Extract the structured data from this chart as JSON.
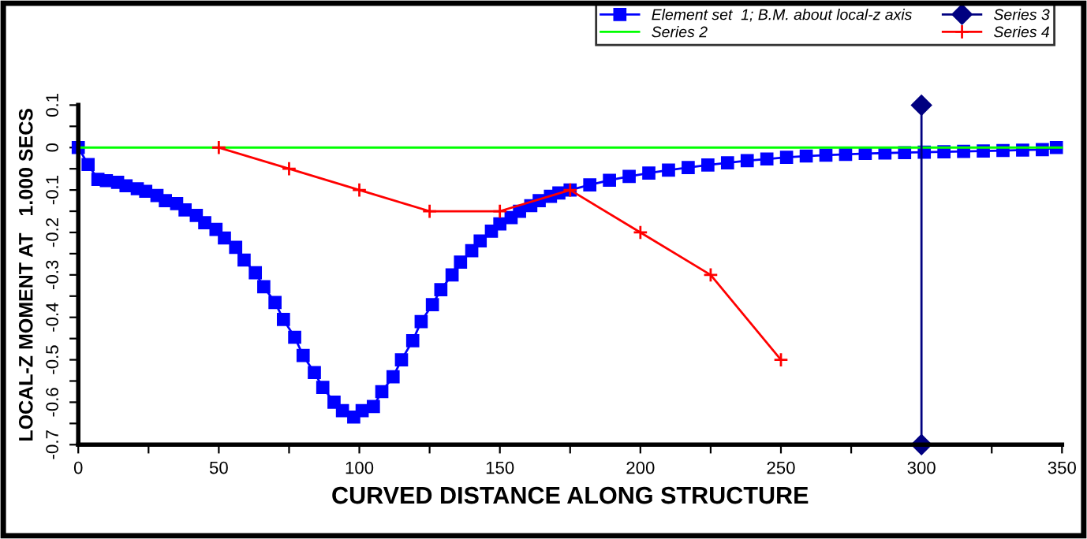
{
  "chart_data": {
    "type": "line",
    "xlabel": "CURVED DISTANCE ALONG STRUCTURE",
    "ylabel": "LOCAL-Z MOMENT AT   1.000 SECS",
    "xlim": [
      0,
      350
    ],
    "ylim": [
      -0.7,
      0.1
    ],
    "xticks": [
      0,
      {
        "value": 25,
        "label": null
      },
      50,
      {
        "value": 75,
        "label": null
      },
      100,
      {
        "value": 125,
        "label": null
      },
      150,
      {
        "value": 175,
        "label": null
      },
      200,
      {
        "value": 225,
        "label": null
      },
      250,
      {
        "value": 275,
        "label": null
      },
      300,
      {
        "value": 325,
        "label": null
      },
      350
    ],
    "yticks": [
      -0.7,
      {
        "value": -0.65,
        "label": null
      },
      -0.6,
      {
        "value": -0.55,
        "label": null
      },
      -0.5,
      {
        "value": -0.45,
        "label": null
      },
      -0.4,
      {
        "value": -0.35,
        "label": null
      },
      -0.3,
      {
        "value": -0.25,
        "label": null
      },
      -0.2,
      {
        "value": -0.15,
        "label": null
      },
      -0.1,
      {
        "value": -0.05,
        "label": null
      },
      0,
      {
        "value": 0.05,
        "label": null
      },
      0.1
    ],
    "grid": false,
    "legend": "top right",
    "series": [
      {
        "name": "Element set  1; B.M. about local-z axis",
        "color": "#0000ff",
        "marker": "square",
        "x": [
          0,
          3.5,
          7,
          10,
          14,
          17,
          21,
          24,
          28,
          31,
          35,
          38,
          42,
          45,
          49,
          52,
          56,
          59,
          63,
          66,
          70,
          73,
          77,
          80,
          84,
          87,
          91,
          94,
          98,
          101,
          105,
          108,
          112,
          115,
          119,
          122,
          126,
          129,
          133,
          136,
          140,
          143,
          147,
          150,
          154,
          157,
          161,
          164,
          168,
          171,
          175,
          182,
          189,
          196,
          203,
          210,
          217,
          224,
          231,
          238,
          245,
          252,
          259,
          266,
          273,
          280,
          287,
          294,
          301,
          308,
          315,
          322,
          329,
          336,
          343,
          348
        ],
        "values": [
          0,
          -0.04,
          -0.075,
          -0.078,
          -0.082,
          -0.09,
          -0.097,
          -0.103,
          -0.113,
          -0.125,
          -0.132,
          -0.147,
          -0.16,
          -0.177,
          -0.193,
          -0.213,
          -0.235,
          -0.265,
          -0.295,
          -0.328,
          -0.365,
          -0.405,
          -0.447,
          -0.49,
          -0.53,
          -0.565,
          -0.6,
          -0.62,
          -0.635,
          -0.62,
          -0.61,
          -0.575,
          -0.54,
          -0.5,
          -0.455,
          -0.41,
          -0.37,
          -0.335,
          -0.3,
          -0.27,
          -0.243,
          -0.22,
          -0.197,
          -0.18,
          -0.165,
          -0.15,
          -0.137,
          -0.125,
          -0.115,
          -0.107,
          -0.1,
          -0.088,
          -0.077,
          -0.068,
          -0.06,
          -0.053,
          -0.047,
          -0.041,
          -0.036,
          -0.031,
          -0.027,
          -0.023,
          -0.02,
          -0.018,
          -0.016,
          -0.014,
          -0.013,
          -0.012,
          -0.011,
          -0.01,
          -0.009,
          -0.008,
          -0.007,
          -0.006,
          -0.005,
          0
        ]
      },
      {
        "name": "Series 2",
        "color": "#00ff00",
        "marker": "none",
        "x": [
          0,
          350
        ],
        "values": [
          0,
          0
        ]
      },
      {
        "name": "Series 3",
        "color": "#000080",
        "marker": "diamond",
        "x": [
          300,
          300
        ],
        "values": [
          -0.7,
          0.1
        ]
      },
      {
        "name": "Series 4",
        "color": "#ff0000",
        "marker": "cross",
        "x": [
          50,
          75,
          100,
          125,
          150,
          175,
          200,
          225,
          250
        ],
        "values": [
          0,
          -0.05,
          -0.1,
          -0.15,
          -0.15,
          -0.1,
          -0.2,
          -0.3,
          -0.5
        ]
      }
    ]
  }
}
